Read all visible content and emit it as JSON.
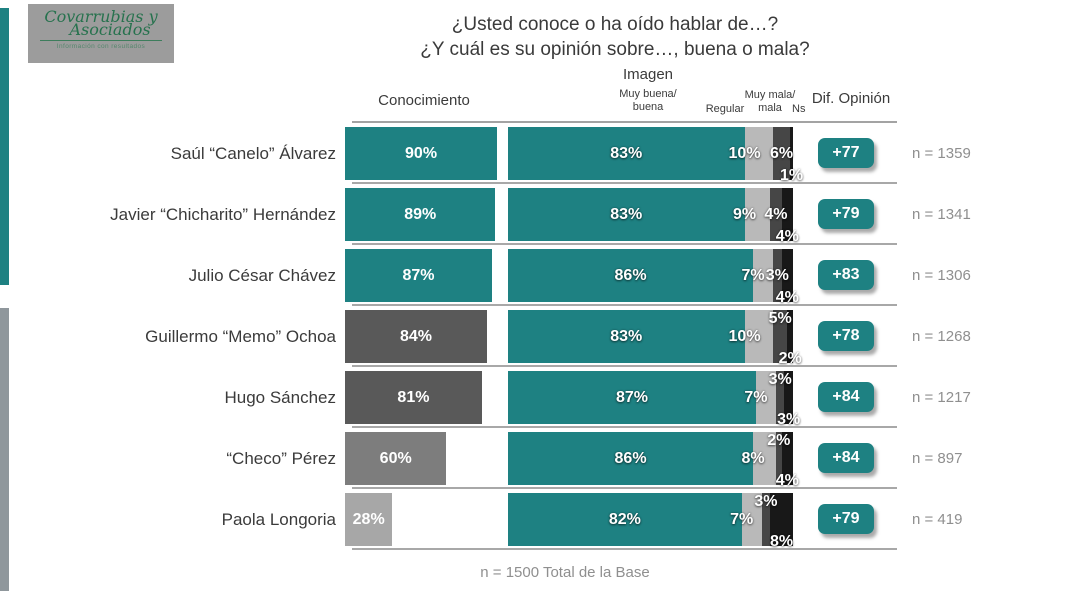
{
  "logo": {
    "line1": "Covarrubias y",
    "line2": "Asociados",
    "tagline": "Información con resultados"
  },
  "title": {
    "line1": "¿Usted conoce o ha oído hablar de…?",
    "line2": "¿Y cuál es su opinión sobre…, buena o mala?"
  },
  "headers": {
    "conocimiento": "Conocimiento",
    "imagen": "Imagen",
    "muy_buena": [
      "Muy buena/",
      "buena"
    ],
    "regular": "Regular",
    "muy_mala": [
      "Muy mala/",
      "mala"
    ],
    "ns": "Ns",
    "dif_opinion": "Dif. Opinión"
  },
  "footer": "n = 1500 Total de la Base",
  "colors": {
    "teal": "#1E8182",
    "bar_dark_gray": "#595959",
    "bar_mid_gray": "#7D7D7D",
    "bar_light_gray": "#A7A7A7",
    "seg_regular": "#B9B9B9",
    "seg_mala": "#464646",
    "seg_ns": "#181818",
    "badge": "#1E8182"
  },
  "chart_data": {
    "type": "bar",
    "title": "¿Usted conoce o ha oído hablar de…? ¿Y cuál es su opinión sobre…, buena o mala?",
    "unit": "%",
    "groups": [
      "Conocimiento",
      "Imagen",
      "Dif. Opinión"
    ],
    "imagen_segments": [
      "Muy buena/buena",
      "Regular",
      "Muy mala/mala",
      "Ns"
    ],
    "xlim": [
      0,
      100
    ],
    "rows": [
      {
        "name": "Saúl “Canelo” Álvarez",
        "conocimiento": 90,
        "conocimiento_color": "teal",
        "muy_buena_buena": 83,
        "regular": 10,
        "muy_mala_mala": 6,
        "ns": 1,
        "dif_opinion": "+77",
        "n": 1359,
        "mala_pos": "center"
      },
      {
        "name": "Javier “Chicharito” Hernández",
        "conocimiento": 89,
        "conocimiento_color": "teal",
        "muy_buena_buena": 83,
        "regular": 9,
        "muy_mala_mala": 4,
        "ns": 4,
        "dif_opinion": "+79",
        "n": 1341,
        "mala_pos": "center"
      },
      {
        "name": "Julio César Chávez",
        "conocimiento": 87,
        "conocimiento_color": "teal",
        "muy_buena_buena": 86,
        "regular": 7,
        "muy_mala_mala": 3,
        "ns": 4,
        "dif_opinion": "+83",
        "n": 1306,
        "mala_pos": "center"
      },
      {
        "name": "Guillermo “Memo” Ochoa",
        "conocimiento": 84,
        "conocimiento_color": "dark",
        "muy_buena_buena": 83,
        "regular": 10,
        "muy_mala_mala": 5,
        "ns": 2,
        "dif_opinion": "+78",
        "n": 1268,
        "mala_pos": "top"
      },
      {
        "name": "Hugo Sánchez",
        "conocimiento": 81,
        "conocimiento_color": "dark",
        "muy_buena_buena": 87,
        "regular": 7,
        "muy_mala_mala": 3,
        "ns": 3,
        "dif_opinion": "+84",
        "n": 1217,
        "mala_pos": "top"
      },
      {
        "name": "“Checo” Pérez",
        "conocimiento": 60,
        "conocimiento_color": "mid",
        "muy_buena_buena": 86,
        "regular": 8,
        "muy_mala_mala": 2,
        "ns": 4,
        "dif_opinion": "+84",
        "n": 897,
        "mala_pos": "top"
      },
      {
        "name": "Paola Longoria",
        "conocimiento": 28,
        "conocimiento_color": "light",
        "muy_buena_buena": 82,
        "regular": 7,
        "muy_mala_mala": 3,
        "ns": 8,
        "dif_opinion": "+79",
        "n": 419,
        "mala_pos": "top"
      }
    ],
    "base_note": "n = 1500 Total de la Base"
  }
}
